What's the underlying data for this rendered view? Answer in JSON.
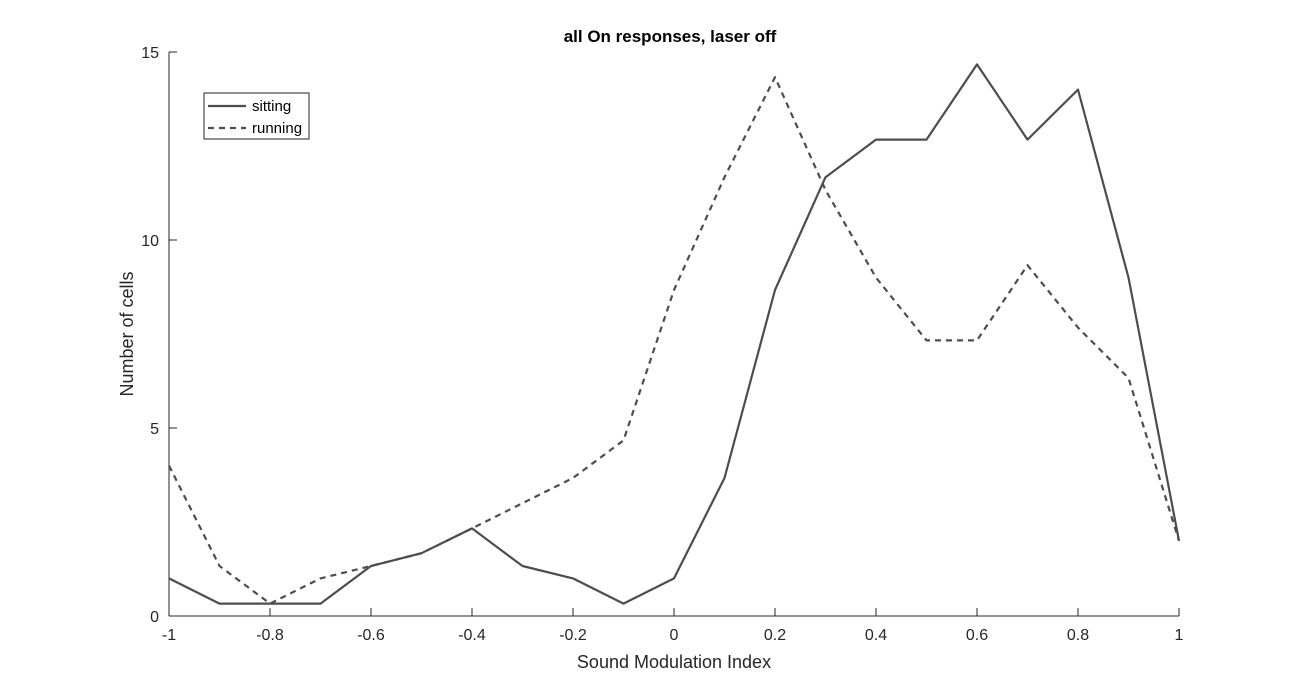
{
  "chart_data": {
    "type": "line",
    "title": "all On responses, laser off",
    "xlabel": "Sound Modulation Index",
    "ylabel": "Number of cells",
    "xlim": [
      -1,
      1
    ],
    "ylim": [
      0,
      15
    ],
    "xticks": [
      -1,
      -0.8,
      -0.6,
      -0.4,
      -0.2,
      0,
      0.2,
      0.4,
      0.6,
      0.8,
      1
    ],
    "xtick_labels": [
      "-1",
      "-0.8",
      "-0.6",
      "-0.4",
      "-0.2",
      "0",
      "0.2",
      "0.4",
      "0.6",
      "0.8",
      "1"
    ],
    "yticks": [
      0,
      5,
      10,
      15
    ],
    "ytick_labels": [
      "0",
      "5",
      "10",
      "15"
    ],
    "grid": false,
    "legend_position": "top-left",
    "x": [
      -1,
      -0.9,
      -0.8,
      -0.7,
      -0.6,
      -0.5,
      -0.4,
      -0.3,
      -0.2,
      -0.1,
      0,
      0.1,
      0.2,
      0.3,
      0.4,
      0.5,
      0.6,
      0.7,
      0.8,
      0.9,
      1
    ],
    "series": [
      {
        "name": "sitting",
        "style": "solid",
        "color": "#4d4d4d",
        "values": [
          1.0,
          0.33,
          0.33,
          0.33,
          1.33,
          1.67,
          2.33,
          1.33,
          1.0,
          0.33,
          1.0,
          3.67,
          8.67,
          11.67,
          12.67,
          12.67,
          14.67,
          12.67,
          14.0,
          9.0,
          2.0
        ]
      },
      {
        "name": "running",
        "style": "dashed",
        "color": "#4d4d4d",
        "values": [
          4.0,
          1.33,
          0.33,
          1.0,
          1.33,
          1.67,
          2.33,
          3.0,
          3.67,
          4.67,
          8.67,
          11.67,
          14.33,
          11.33,
          9.0,
          7.33,
          7.33,
          9.33,
          7.67,
          6.33,
          2.0
        ]
      }
    ]
  }
}
